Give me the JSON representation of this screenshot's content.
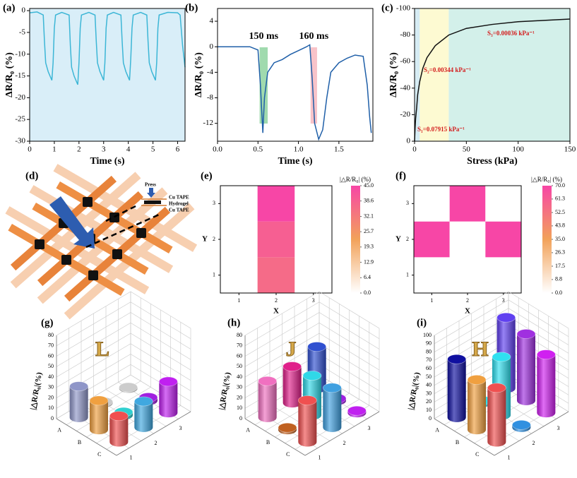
{
  "chart_data": [
    {
      "type": "line",
      "label": "(a)",
      "xlabel": "Time (s)",
      "ylabel": "ΔR/R₀ (%)",
      "background": "#d9eef8",
      "x": [
        0,
        0.3,
        0.55,
        0.6,
        0.65,
        0.75,
        0.9,
        0.95,
        1.0,
        1.05,
        1.3,
        1.6,
        1.65,
        1.7,
        1.8,
        1.95,
        2.0,
        2.05,
        2.1,
        2.4,
        2.65,
        2.7,
        2.75,
        2.85,
        3.0,
        3.05,
        3.1,
        3.15,
        3.4,
        3.7,
        3.75,
        3.8,
        3.9,
        4.05,
        4.1,
        4.15,
        4.2,
        4.5,
        4.75,
        4.8,
        4.85,
        4.95,
        5.1,
        5.15,
        5.2,
        5.25,
        5.6,
        6.0,
        6.1,
        6.2,
        6.3
      ],
      "series": [
        {
          "color": "#3cb6d6",
          "values": [
            -0.5,
            -0.3,
            -1,
            -7,
            -12,
            -14,
            -16,
            -12,
            -4,
            -1,
            -0.4,
            -1,
            -8,
            -13,
            -15,
            -17,
            -12,
            -4,
            -1,
            -0.4,
            -1,
            -7,
            -12,
            -14,
            -16,
            -12,
            -4,
            -1,
            -0.4,
            -1,
            -7,
            -12,
            -14,
            -16,
            -11,
            -4,
            -1,
            -0.4,
            -1,
            -7,
            -12,
            -14,
            -16,
            -12,
            -4,
            -1,
            -0.4,
            -0.5,
            -1,
            -8,
            -13
          ]
        }
      ],
      "xlim": [
        0,
        6.3
      ],
      "ylim": [
        -30,
        0.5
      ],
      "xticks": [
        0,
        1,
        2,
        3,
        4,
        5,
        6
      ],
      "yticks": [
        0,
        -5,
        -10,
        -15,
        -20,
        -25,
        -30
      ]
    },
    {
      "type": "line",
      "label": "(b)",
      "xlabel": "Time (s)",
      "ylabel": "ΔR/R₀ (%)",
      "x": [
        0,
        0.2,
        0.4,
        0.5,
        0.53,
        0.56,
        0.58,
        0.62,
        0.7,
        0.8,
        0.9,
        1.0,
        1.1,
        1.14,
        1.17,
        1.2,
        1.25,
        1.3,
        1.35,
        1.4,
        1.5,
        1.6,
        1.7,
        1.8,
        1.85,
        1.88,
        1.9
      ],
      "series": [
        {
          "color": "#1f5fa8",
          "values": [
            0,
            0,
            0,
            -0.5,
            -6,
            -13.5,
            -8,
            -4,
            -2.5,
            -2,
            -1.2,
            -0.6,
            0,
            0.3,
            -5,
            -12,
            -14.5,
            -13,
            -8,
            -4,
            -2.5,
            -1.8,
            -1.3,
            -1.5,
            -6,
            -11,
            -13.5
          ]
        }
      ],
      "spans": [
        {
          "label": "150 ms",
          "from": 0.52,
          "to": 0.62,
          "color": "#8fd3a0"
        },
        {
          "label": "160 ms",
          "from": 1.15,
          "to": 1.23,
          "color": "#f7b8c0"
        }
      ],
      "xlim": [
        0,
        1.92
      ],
      "ylim": [
        -14.8,
        6
      ],
      "xticks": [
        {
          "value": 0,
          "label": "0.0"
        },
        0.5,
        {
          "value": 1,
          "label": "1.0"
        },
        1.5
      ],
      "yticks": [
        -12,
        -8,
        -4,
        0,
        4
      ]
    },
    {
      "type": "line",
      "label": "(c)",
      "xlabel": "Stress (kPa)",
      "ylabel": "ΔR/R₀ (%)",
      "x": [
        0,
        0.5,
        1,
        2,
        3,
        5,
        8,
        12,
        20,
        33,
        50,
        75,
        100,
        125,
        150
      ],
      "series": [
        {
          "color": "#111111",
          "values": [
            0,
            -10,
            -17,
            -25,
            -35,
            -45,
            -55,
            -63,
            -72,
            -80,
            -85,
            -88,
            -90,
            -91,
            -92
          ]
        }
      ],
      "regions": [
        {
          "from": 0,
          "to": 5,
          "color": "#d6ecf4"
        },
        {
          "from": 5,
          "to": 33,
          "color": "#fdfad2"
        },
        {
          "from": 33,
          "to": 150,
          "color": "#d3f0ea"
        }
      ],
      "annotations": [
        "S₃=0.00036 kPa⁻¹",
        "S₂=0.00344 kPa⁻¹",
        "S₁=0.07915 kPa⁻¹"
      ],
      "xlim": [
        0,
        150
      ],
      "ylim": [
        0,
        -100
      ],
      "xticks": [
        0,
        50,
        100,
        150
      ],
      "yticks": [
        0,
        -20,
        -40,
        -60,
        -80,
        -100
      ]
    },
    {
      "type": "heatmap",
      "label": "(e)",
      "xlabel": "X",
      "ylabel": "Y",
      "x": [
        1,
        2,
        3
      ],
      "y": [
        1,
        2,
        3
      ],
      "values": [
        [
          0,
          36,
          0
        ],
        [
          0,
          39,
          0
        ],
        [
          0,
          45,
          0
        ]
      ],
      "zlim": [
        0,
        45
      ],
      "colors": [
        "#ffffff",
        "#f2a25a",
        "#f746a6"
      ],
      "colorbar_label": "|△R/R₀| (%)",
      "colorbar_ticks": [
        {
          "value": 0,
          "label": "0.0"
        },
        6.4,
        12.9,
        19.3,
        25.7,
        32.1,
        38.6,
        {
          "value": 45,
          "label": "45.0"
        }
      ]
    },
    {
      "type": "heatmap",
      "label": "(f)",
      "xlabel": "X",
      "ylabel": "Y",
      "x": [
        1,
        2,
        3
      ],
      "y": [
        1,
        2,
        3
      ],
      "values": [
        [
          0,
          0,
          0
        ],
        [
          70,
          0,
          70
        ],
        [
          0,
          70,
          0
        ]
      ],
      "zlim": [
        0,
        70
      ],
      "colors": [
        "#ffffff",
        "#f2a25a",
        "#f746a6"
      ],
      "colorbar_label": "|△R/R₀| (%)",
      "colorbar_ticks": [
        {
          "value": 0,
          "label": "0.0"
        },
        8.8,
        17.5,
        26.3,
        {
          "value": 35,
          "label": "35.0"
        },
        43.8,
        52.5,
        61.3,
        {
          "value": 70,
          "label": "70.0"
        }
      ]
    },
    {
      "type": "bar3d",
      "label": "(g)",
      "letter": "L",
      "zlabel": "|△R/R₀|(%)",
      "rows": [
        "A",
        "B",
        "C"
      ],
      "cols": [
        "1",
        "2",
        "3"
      ],
      "values": [
        [
          30,
          1,
          1
        ],
        [
          28,
          3,
          3
        ],
        [
          25,
          25,
          30
        ]
      ],
      "colors": [
        [
          "#8f96c8",
          "#cccccc",
          "#cccccc"
        ],
        [
          "#f0a040",
          "#30d0d0",
          "#a020e0"
        ],
        [
          "#f05050",
          "#40a8e0",
          "#c020f0"
        ]
      ],
      "zlim": [
        0,
        80
      ],
      "zticks": [
        0,
        10,
        20,
        30,
        40,
        50,
        60,
        70,
        80
      ]
    },
    {
      "type": "bar3d",
      "label": "(h)",
      "letter": "J",
      "zlabel": "|△R/R₀|(%)",
      "rows": [
        "A",
        "B",
        "C"
      ],
      "cols": [
        "1",
        "2",
        "3"
      ],
      "values": [
        [
          35,
          35,
          40
        ],
        [
          2,
          38,
          2
        ],
        [
          40,
          38,
          2
        ]
      ],
      "colors": [
        [
          "#f070c0",
          "#e0208a",
          "#3050d0"
        ],
        [
          "#c06020",
          "#30d8e8",
          "#a020e0"
        ],
        [
          "#f05050",
          "#40a0e0",
          "#c020f0"
        ]
      ],
      "zlim": [
        0,
        80
      ],
      "zticks": [
        0,
        10,
        20,
        30,
        40,
        50,
        60,
        70,
        80
      ]
    },
    {
      "type": "bar3d",
      "label": "(i)",
      "letter": "H",
      "zlabel": "|△R/R₀|(%)",
      "rows": [
        "A",
        "B",
        "C"
      ],
      "cols": [
        "1",
        "2",
        "3"
      ],
      "values": [
        [
          70,
          3,
          85
        ],
        [
          60,
          70,
          80
        ],
        [
          65,
          3,
          70
        ]
      ],
      "colors": [
        [
          "#1010a0",
          "#30e0f0",
          "#6040f0"
        ],
        [
          "#f0a040",
          "#30e0f0",
          "#a030e0"
        ],
        [
          "#f05050",
          "#3090e0",
          "#d020f0"
        ]
      ],
      "zlim": [
        0,
        100
      ],
      "zticks": [
        0,
        10,
        20,
        30,
        40,
        50,
        60,
        70,
        80,
        90,
        100
      ]
    }
  ],
  "diagram": {
    "label": "(d)",
    "press": "Press",
    "layers": [
      "Cu TAPE",
      "Hydrogel",
      "Cu TAPE"
    ]
  }
}
